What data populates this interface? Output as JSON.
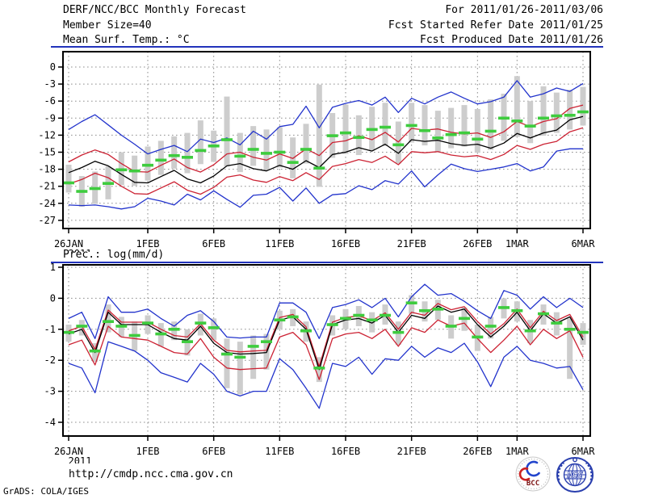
{
  "header": {
    "left": [
      "DERF/NCC/BCC Monthly Forecast",
      "Member Size=40"
    ],
    "right": [
      "For 2011/01/26-2011/03/06",
      "Fcst Started Refer Date 2011/01/25",
      "Fcst Produced Date 2011/01/26"
    ]
  },
  "footer": {
    "url": "http://cmdp.ncc.cma.gov.cn",
    "credit": "GrADS: COLA/IGES",
    "logos": [
      {
        "name": "BCC",
        "label": "BCC"
      },
      {
        "name": "NCC",
        "label": "NCC"
      }
    ]
  },
  "colors": {
    "extreme_line": "#2233cc",
    "spread_line": "#cc2233",
    "mean_line": "#000000",
    "observation_dash": "#3ecc3e",
    "member_bar": "#cdcdcd",
    "grid": "#8f8f8f",
    "frame": "#000000",
    "separator": "#2233bb"
  },
  "chart_data": [
    {
      "type": "line",
      "title": "Mean Surf. Temp.: °C",
      "year_label": "2011",
      "n_days": 40,
      "x_ticks": [
        [
          "26JAN",
          1
        ],
        [
          "1FEB",
          7
        ],
        [
          "6FEB",
          12
        ],
        [
          "11FEB",
          17
        ],
        [
          "16FEB",
          22
        ],
        [
          "21FEB",
          27
        ],
        [
          "26FEB",
          32
        ],
        [
          "1MAR",
          35
        ],
        [
          "6MAR",
          40
        ]
      ],
      "ylim": [
        -27,
        0
      ],
      "ytick_step": 3,
      "grid": true,
      "legend": "none",
      "bars": {
        "name": "member-spread-bar",
        "color": "#cdcdcd",
        "lo": [
          -22.1,
          -24.6,
          -24.1,
          -23.3,
          -20.8,
          -20.9,
          -20.0,
          -19.0,
          -17.9,
          -18.7,
          -17.1,
          -16.7,
          -17.5,
          -18.5,
          -17.4,
          -18.2,
          -17.7,
          -19.6,
          -17.0,
          -21.1,
          -16.0,
          -15.3,
          -15.5,
          -14.7,
          -13.9,
          -17.0,
          -13.3,
          -13.8,
          -15.0,
          -14.3,
          -14.0,
          -15.1,
          -14.6,
          -13.0,
          -12.3,
          -13.4,
          -12.1,
          -11.6,
          -11.0,
          -10.3
        ],
        "hi": [
          -17.2,
          -19.2,
          -18.4,
          -17.5,
          -15.0,
          -15.6,
          -14.0,
          -13.0,
          -12.2,
          -11.6,
          -9.4,
          -11.2,
          -5.2,
          -11.6,
          -10.4,
          -11.0,
          -10.6,
          -12.4,
          -10.0,
          -3.1,
          -8.1,
          -6.6,
          -8.5,
          -7.0,
          -6.3,
          -9.6,
          -6.3,
          -6.7,
          -7.7,
          -7.2,
          -6.7,
          -7.4,
          -5.7,
          -4.7,
          -1.6,
          -6.0,
          -3.4,
          -4.5,
          -4.0,
          -3.5
        ]
      },
      "series": [
        {
          "name": "ensemble-max",
          "color": "#2233cc",
          "render": "line",
          "values": [
            -11.0,
            -9.6,
            -8.4,
            -10.2,
            -12.0,
            -13.6,
            -15.3,
            -14.5,
            -13.8,
            -14.9,
            -12.7,
            -13.3,
            -12.5,
            -13.7,
            -11.3,
            -12.7,
            -10.5,
            -10.1,
            -6.9,
            -10.7,
            -7.1,
            -6.4,
            -5.9,
            -6.7,
            -5.3,
            -8.0,
            -5.5,
            -6.5,
            -5.3,
            -4.4,
            -5.5,
            -6.5,
            -6.1,
            -5.3,
            -2.4,
            -5.3,
            -4.7,
            -3.7,
            -4.3,
            -2.9
          ]
        },
        {
          "name": "upper-spread",
          "color": "#cc2233",
          "render": "line",
          "values": [
            -16.7,
            -15.5,
            -14.6,
            -15.4,
            -17.0,
            -18.4,
            -18.5,
            -17.3,
            -16.2,
            -17.7,
            -18.5,
            -17.2,
            -15.3,
            -15.0,
            -15.9,
            -16.4,
            -15.3,
            -16.1,
            -14.4,
            -15.6,
            -13.3,
            -13.0,
            -12.1,
            -12.8,
            -11.5,
            -13.2,
            -10.8,
            -11.1,
            -10.9,
            -11.5,
            -11.8,
            -11.6,
            -12.4,
            -11.4,
            -9.6,
            -10.5,
            -9.6,
            -9.1,
            -7.3,
            -6.7
          ]
        },
        {
          "name": "ensemble-mean",
          "color": "#000000",
          "render": "line",
          "values": [
            -18.6,
            -17.7,
            -16.6,
            -17.4,
            -18.9,
            -20.3,
            -20.4,
            -19.3,
            -18.2,
            -19.7,
            -20.4,
            -19.2,
            -17.4,
            -17.0,
            -17.9,
            -18.3,
            -17.3,
            -18.0,
            -16.5,
            -17.7,
            -15.4,
            -15.0,
            -14.2,
            -14.8,
            -13.6,
            -15.2,
            -12.8,
            -13.1,
            -12.9,
            -13.5,
            -13.8,
            -13.6,
            -14.3,
            -13.4,
            -11.7,
            -12.5,
            -11.6,
            -11.1,
            -9.3,
            -8.7
          ]
        },
        {
          "name": "lower-spread",
          "color": "#cc2233",
          "render": "line",
          "values": [
            -20.6,
            -19.8,
            -18.7,
            -19.5,
            -21.0,
            -22.3,
            -22.4,
            -21.3,
            -20.2,
            -21.7,
            -22.4,
            -21.2,
            -19.4,
            -19.0,
            -19.9,
            -20.3,
            -19.3,
            -20.0,
            -18.6,
            -19.8,
            -17.5,
            -17.0,
            -16.3,
            -16.8,
            -15.7,
            -17.2,
            -14.9,
            -15.1,
            -14.9,
            -15.5,
            -15.8,
            -15.6,
            -16.3,
            -15.4,
            -13.8,
            -14.5,
            -13.6,
            -13.1,
            -11.4,
            -10.7
          ]
        },
        {
          "name": "ensemble-min",
          "color": "#2233cc",
          "render": "line",
          "values": [
            -24.3,
            -24.4,
            -24.3,
            -24.6,
            -25.0,
            -24.6,
            -23.1,
            -23.6,
            -24.3,
            -22.4,
            -23.4,
            -21.8,
            -23.3,
            -24.7,
            -22.6,
            -22.4,
            -21.2,
            -23.6,
            -21.3,
            -24.0,
            -22.5,
            -22.3,
            -20.9,
            -21.6,
            -20.0,
            -20.6,
            -18.3,
            -21.1,
            -19.0,
            -17.1,
            -17.9,
            -18.4,
            -18.0,
            -17.6,
            -17.0,
            -18.3,
            -17.6,
            -14.8,
            -14.4,
            -14.4
          ]
        },
        {
          "name": "observation",
          "color": "#3ecc3e",
          "render": "dashes",
          "values": [
            -20.4,
            -21.9,
            -21.4,
            -20.5,
            -18.1,
            -18.3,
            -17.3,
            -16.4,
            -15.6,
            -15.9,
            -14.7,
            -13.9,
            -12.8,
            -15.7,
            -14.5,
            -15.2,
            -15.0,
            -16.8,
            -14.5,
            -17.8,
            -12.1,
            -11.6,
            -12.4,
            -11.0,
            -10.6,
            -13.7,
            -10.3,
            -11.2,
            -12.5,
            -11.9,
            -11.6,
            -12.7,
            -11.3,
            -9.0,
            -9.5,
            -10.4,
            -9.0,
            -8.6,
            -8.5,
            -7.9
          ]
        }
      ]
    },
    {
      "type": "line",
      "title": "Prec.: log(mm/d)",
      "year_label": "2011",
      "n_days": 40,
      "x_ticks": [
        [
          "26JAN",
          1
        ],
        [
          "1FEB",
          7
        ],
        [
          "6FEB",
          12
        ],
        [
          "11FEB",
          17
        ],
        [
          "16FEB",
          22
        ],
        [
          "21FEB",
          27
        ],
        [
          "26FEB",
          32
        ],
        [
          "1MAR",
          35
        ],
        [
          "6MAR",
          40
        ]
      ],
      "ylim": [
        -4,
        1
      ],
      "ytick_step": 1,
      "grid": true,
      "legend": "none",
      "bars": {
        "name": "member-spread-bar",
        "color": "#cdcdcd",
        "lo": [
          -1.4,
          -1.2,
          -2.05,
          -1.1,
          -1.25,
          -1.7,
          -1.15,
          -1.55,
          -1.35,
          -1.85,
          -1.2,
          -1.35,
          -2.9,
          -3.1,
          -2.6,
          -2.3,
          -1.0,
          -0.9,
          -1.4,
          -2.7,
          -1.2,
          -1.0,
          -0.9,
          -1.1,
          -0.85,
          -1.5,
          -0.5,
          -0.75,
          -0.7,
          -1.3,
          -1.05,
          -1.7,
          -1.3,
          -0.65,
          -0.75,
          -1.45,
          -0.85,
          -1.2,
          -2.6,
          -1.5
        ],
        "hi": [
          -0.85,
          -0.7,
          -1.45,
          -0.2,
          -0.6,
          -0.75,
          -0.55,
          -0.8,
          -0.75,
          -1.0,
          -0.5,
          -0.65,
          -1.3,
          -1.4,
          -1.2,
          -1.15,
          -0.4,
          -0.35,
          -0.75,
          -1.9,
          -0.55,
          -0.35,
          -0.25,
          -0.45,
          -0.2,
          -0.75,
          0.1,
          -0.1,
          -0.05,
          -0.55,
          -0.3,
          -0.85,
          -0.6,
          0.0,
          -0.1,
          -0.7,
          -0.2,
          -0.45,
          -0.65,
          -0.8
        ]
      },
      "series": [
        {
          "name": "ensemble-max",
          "color": "#2233cc",
          "render": "line",
          "values": [
            -0.65,
            -0.45,
            -1.3,
            0.05,
            -0.45,
            -0.45,
            -0.35,
            -0.65,
            -0.9,
            -0.55,
            -0.4,
            -0.75,
            -1.25,
            -1.28,
            -1.25,
            -1.25,
            -0.15,
            -0.15,
            -0.45,
            -1.3,
            -0.3,
            -0.2,
            -0.05,
            -0.3,
            0.0,
            -0.6,
            0.05,
            0.45,
            0.1,
            0.15,
            -0.1,
            -0.4,
            -0.65,
            0.25,
            0.1,
            -0.35,
            0.05,
            -0.3,
            0.0,
            -0.3
          ]
        },
        {
          "name": "upper-spread",
          "color": "#cc2233",
          "render": "line",
          "values": [
            -1.05,
            -0.9,
            -1.65,
            -0.38,
            -0.77,
            -0.77,
            -0.77,
            -1.0,
            -1.2,
            -1.25,
            -0.82,
            -1.35,
            -1.68,
            -1.73,
            -1.7,
            -1.68,
            -0.62,
            -0.52,
            -0.92,
            -2.2,
            -0.77,
            -0.62,
            -0.57,
            -0.72,
            -0.47,
            -1.0,
            -0.45,
            -0.55,
            -0.17,
            -0.37,
            -0.27,
            -0.75,
            -1.15,
            -0.82,
            -0.35,
            -0.95,
            -0.42,
            -0.72,
            -0.52,
            -1.25
          ]
        },
        {
          "name": "ensemble-mean",
          "color": "#000000",
          "render": "line",
          "values": [
            -1.15,
            -1.0,
            -1.75,
            -0.45,
            -0.85,
            -0.85,
            -0.85,
            -1.1,
            -1.3,
            -1.35,
            -0.9,
            -1.45,
            -1.75,
            -1.8,
            -1.78,
            -1.75,
            -0.7,
            -0.6,
            -1.0,
            -2.3,
            -0.85,
            -0.7,
            -0.65,
            -0.8,
            -0.55,
            -1.1,
            -0.55,
            -0.65,
            -0.25,
            -0.45,
            -0.35,
            -0.85,
            -1.25,
            -0.9,
            -0.45,
            -1.05,
            -0.5,
            -0.8,
            -0.6,
            -1.35
          ]
        },
        {
          "name": "lower-spread",
          "color": "#cc2233",
          "render": "line",
          "values": [
            -1.5,
            -1.35,
            -2.15,
            -0.9,
            -1.25,
            -1.3,
            -1.35,
            -1.55,
            -1.75,
            -1.8,
            -1.3,
            -1.9,
            -2.25,
            -2.3,
            -2.27,
            -2.25,
            -1.25,
            -1.1,
            -1.5,
            -2.62,
            -1.3,
            -1.15,
            -1.1,
            -1.3,
            -1.0,
            -1.55,
            -0.95,
            -1.1,
            -0.7,
            -0.9,
            -0.8,
            -1.3,
            -1.75,
            -1.35,
            -0.9,
            -1.5,
            -1.0,
            -1.3,
            -1.05,
            -1.9
          ]
        },
        {
          "name": "ensemble-min",
          "color": "#2233cc",
          "render": "line",
          "values": [
            -2.1,
            -2.25,
            -3.05,
            -1.4,
            -1.55,
            -1.7,
            -2.0,
            -2.4,
            -2.55,
            -2.7,
            -2.1,
            -2.45,
            -3.0,
            -3.15,
            -3.0,
            -3.0,
            -1.95,
            -2.3,
            -2.9,
            -3.55,
            -2.1,
            -2.2,
            -1.9,
            -2.45,
            -1.95,
            -2.0,
            -1.55,
            -1.9,
            -1.6,
            -1.75,
            -1.45,
            -2.05,
            -2.85,
            -1.9,
            -1.55,
            -2.0,
            -2.1,
            -2.25,
            -2.2,
            -2.95
          ]
        },
        {
          "name": "observation",
          "color": "#3ecc3e",
          "render": "dashes",
          "values": [
            -1.1,
            -0.9,
            -1.7,
            -0.75,
            -0.9,
            -1.2,
            -0.8,
            -1.15,
            -1.0,
            -1.4,
            -0.8,
            -0.95,
            -1.8,
            -1.9,
            -1.55,
            -1.4,
            -0.7,
            -0.6,
            -1.05,
            -2.25,
            -0.85,
            -0.65,
            -0.55,
            -0.7,
            -0.55,
            -1.1,
            -0.15,
            -0.4,
            -0.35,
            -0.9,
            -0.65,
            -1.25,
            -0.9,
            -0.3,
            -0.4,
            -1.05,
            -0.5,
            -0.8,
            -1.0,
            -1.1
          ]
        }
      ]
    }
  ]
}
